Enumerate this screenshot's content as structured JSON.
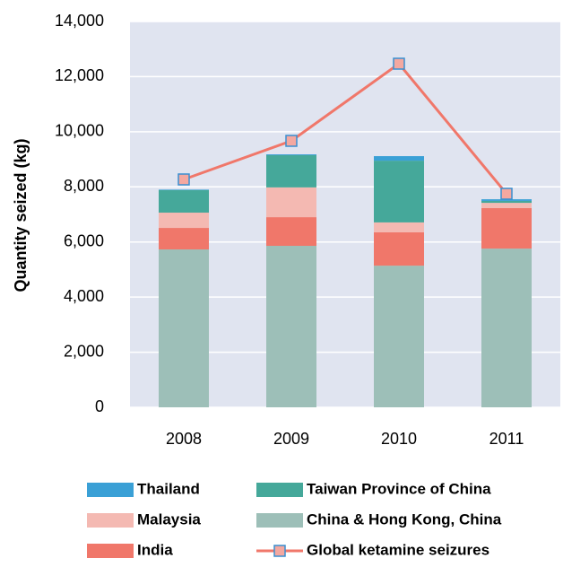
{
  "chart_data": {
    "type": "bar",
    "y_label": "Quantity seized (kg)",
    "categories": [
      "2008",
      "2009",
      "2010",
      "2011"
    ],
    "series": [
      {
        "name": "China & Hong Kong, China",
        "color": "#9dbfb8",
        "values": [
          5730,
          5860,
          5140,
          5760
        ]
      },
      {
        "name": "India",
        "color": "#f0776a",
        "values": [
          780,
          1040,
          1210,
          1470
        ]
      },
      {
        "name": "Malaysia",
        "color": "#f4b9b2",
        "values": [
          555,
          1080,
          360,
          190
        ]
      },
      {
        "name": "Taiwan Province of China",
        "color": "#45a89a",
        "values": [
          815,
          1170,
          2240,
          70
        ]
      },
      {
        "name": "Thailand",
        "color": "#3aa0d6",
        "values": [
          20,
          30,
          165,
          60
        ]
      },
      {
        "name": "Global ketamine seizures",
        "type": "line",
        "color": "#f0776a",
        "marker_color": "#f4a8a0",
        "marker_edge": "#3a8fd0",
        "values": [
          8270,
          9670,
          12470,
          7750
        ]
      }
    ],
    "ylim": [
      0,
      14000
    ],
    "yticks": [
      0,
      {
        "value": 2000,
        "label": "2,000"
      },
      {
        "value": 4000,
        "label": "4,000"
      },
      {
        "value": 6000,
        "label": "6,000"
      },
      {
        "value": 8000,
        "label": "8,000"
      },
      {
        "value": 10000,
        "label": "10,000"
      },
      {
        "value": 12000,
        "label": "12,000"
      },
      {
        "value": 14000,
        "label": "14,000"
      }
    ],
    "plot_background": "#e0e4f0"
  }
}
